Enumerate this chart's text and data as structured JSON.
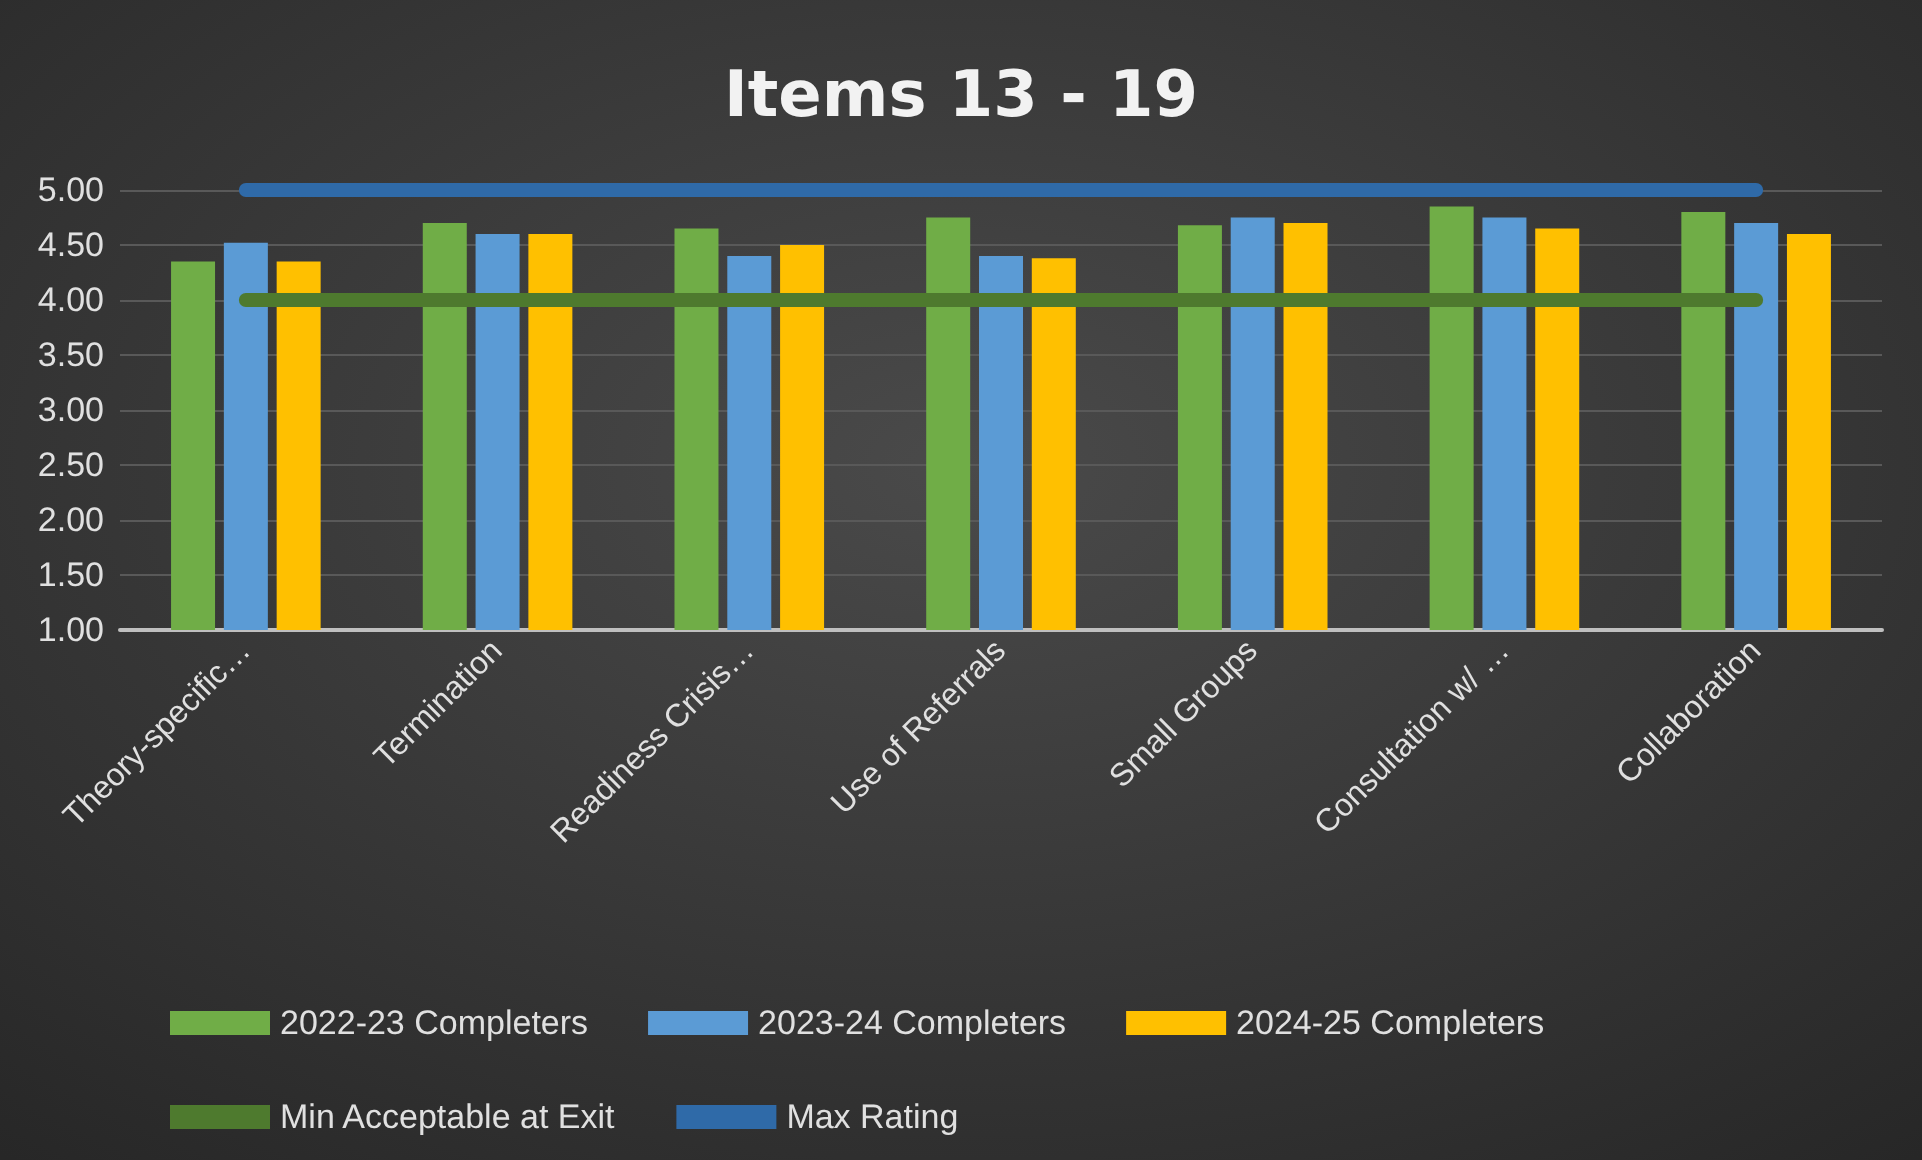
{
  "chart_data": {
    "type": "bar",
    "title": "Items 13 - 19",
    "categories": [
      "Theory-specific…",
      "Termination",
      "Readiness Crisis…",
      "Use of Referrals",
      "Small Groups",
      "Consultation w/ …",
      "Collaboration"
    ],
    "series": [
      {
        "name": "2022-23 Completers",
        "color": "#70ad47",
        "values": [
          4.35,
          4.7,
          4.65,
          4.75,
          4.68,
          4.85,
          4.8
        ]
      },
      {
        "name": "2023-24 Completers",
        "color": "#5b9bd5",
        "values": [
          4.52,
          4.6,
          4.4,
          4.4,
          4.75,
          4.75,
          4.7
        ]
      },
      {
        "name": "2024-25 Completers",
        "color": "#ffc000",
        "values": [
          4.35,
          4.6,
          4.5,
          4.38,
          4.7,
          4.65,
          4.6
        ]
      },
      {
        "name": "Min Acceptable at Exit",
        "type": "line",
        "color": "#4e7a2e",
        "values": [
          4,
          4,
          4,
          4,
          4,
          4,
          4
        ]
      },
      {
        "name": "Max Rating",
        "type": "line",
        "color": "#2f6aa8",
        "values": [
          5,
          5,
          5,
          5,
          5,
          5,
          5
        ]
      }
    ],
    "ylim": [
      1,
      5
    ],
    "yticks": [
      {
        "value": 1,
        "label": "1.00"
      },
      {
        "value": 1.5,
        "label": "1.50"
      },
      {
        "value": 2,
        "label": "2.00"
      },
      {
        "value": 2.5,
        "label": "2.50"
      },
      {
        "value": 3,
        "label": "3.00"
      },
      {
        "value": 3.5,
        "label": "3.50"
      },
      {
        "value": 4,
        "label": "4.00"
      },
      {
        "value": 4.5,
        "label": "4.50"
      },
      {
        "value": 5,
        "label": "5.00"
      }
    ],
    "grid": "y",
    "legend": "bottom"
  }
}
